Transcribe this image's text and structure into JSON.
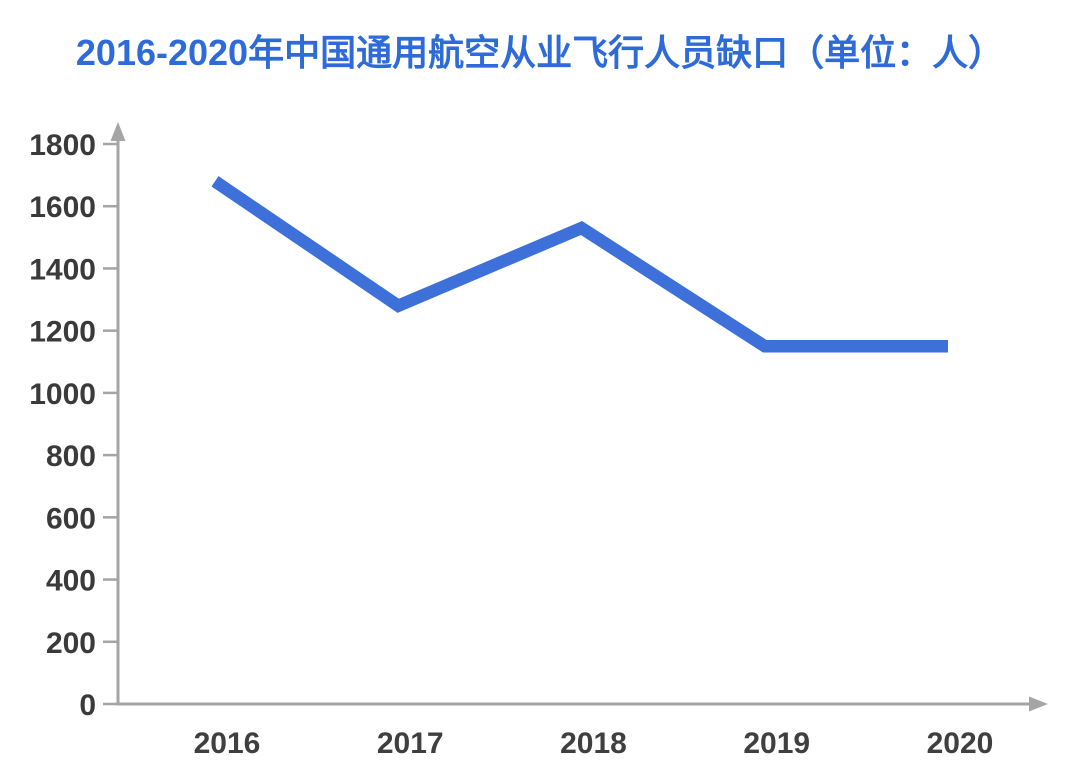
{
  "header": {
    "title": "2016-2020年中国通用航空从业飞行人员缺口（单位：人）",
    "title_color": "#2e6bd9"
  },
  "chart_data": {
    "type": "line",
    "title": "2016-2020年中国通用航空从业飞行人员缺口（单位：人）",
    "unit": "人",
    "categories": [
      "2016",
      "2017",
      "2018",
      "2019",
      "2020"
    ],
    "values": [
      1680,
      1280,
      1530,
      1150,
      1150
    ],
    "xlabel": "",
    "ylabel": "",
    "ylim": [
      0,
      1800
    ],
    "ytick_step": 200,
    "ytick_labels": [
      "0",
      "200",
      "400",
      "600",
      "800",
      "1000",
      "1200",
      "1400",
      "1600",
      "1800"
    ],
    "grid": false,
    "legend": false,
    "line_color": "#3e70d9",
    "axis_color": "#a5a5a5",
    "tick_label_color": "#3a3a3a"
  }
}
